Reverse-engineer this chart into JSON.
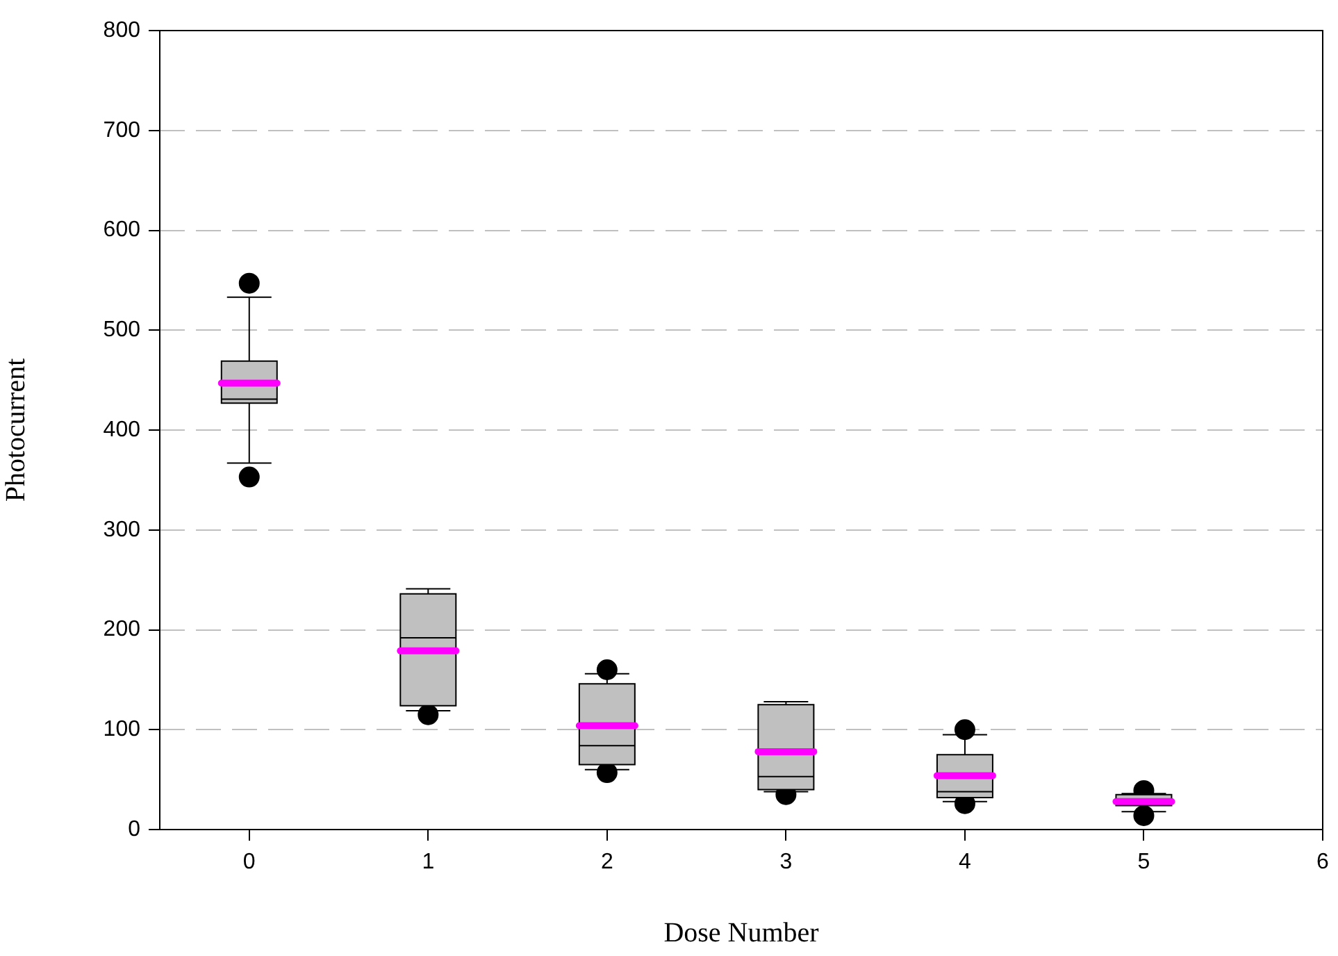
{
  "chart_data": {
    "type": "box",
    "xlabel": "Dose Number",
    "ylabel": "Photocurrent",
    "x": [
      0,
      1,
      2,
      3,
      4,
      5
    ],
    "xlim": [
      -0.5,
      6
    ],
    "xticks": [
      0,
      1,
      2,
      3,
      4,
      5,
      6
    ],
    "ylim": [
      0,
      800
    ],
    "yticks": [
      0,
      100,
      200,
      300,
      400,
      500,
      600,
      700,
      800
    ],
    "grid": "y",
    "series": [
      {
        "color": "#c0c0c0",
        "boxes": [
          {
            "low": 367,
            "q1": 427,
            "median": 431,
            "q3": 469,
            "high": 533,
            "mean": 447,
            "outliers": [
              547,
              353
            ]
          },
          {
            "low": 119,
            "q1": 124,
            "median": 192,
            "q3": 236,
            "high": 241,
            "mean": 179,
            "outliers": [
              115
            ]
          },
          {
            "low": 60,
            "q1": 65,
            "median": 84,
            "q3": 146,
            "high": 156,
            "mean": 104,
            "outliers": [
              160,
              57
            ]
          },
          {
            "low": 38,
            "q1": 40,
            "median": 53,
            "q3": 125,
            "high": 128,
            "mean": 78,
            "outliers": [
              35
            ]
          },
          {
            "low": 28,
            "q1": 32,
            "median": 38,
            "q3": 75,
            "high": 95,
            "mean": 54,
            "outliers": [
              100,
              26
            ]
          },
          {
            "low": 18,
            "q1": 24,
            "median": 25,
            "q3": 35,
            "high": 36,
            "mean": 28,
            "outliers": [
              39,
              14
            ]
          }
        ]
      }
    ]
  }
}
